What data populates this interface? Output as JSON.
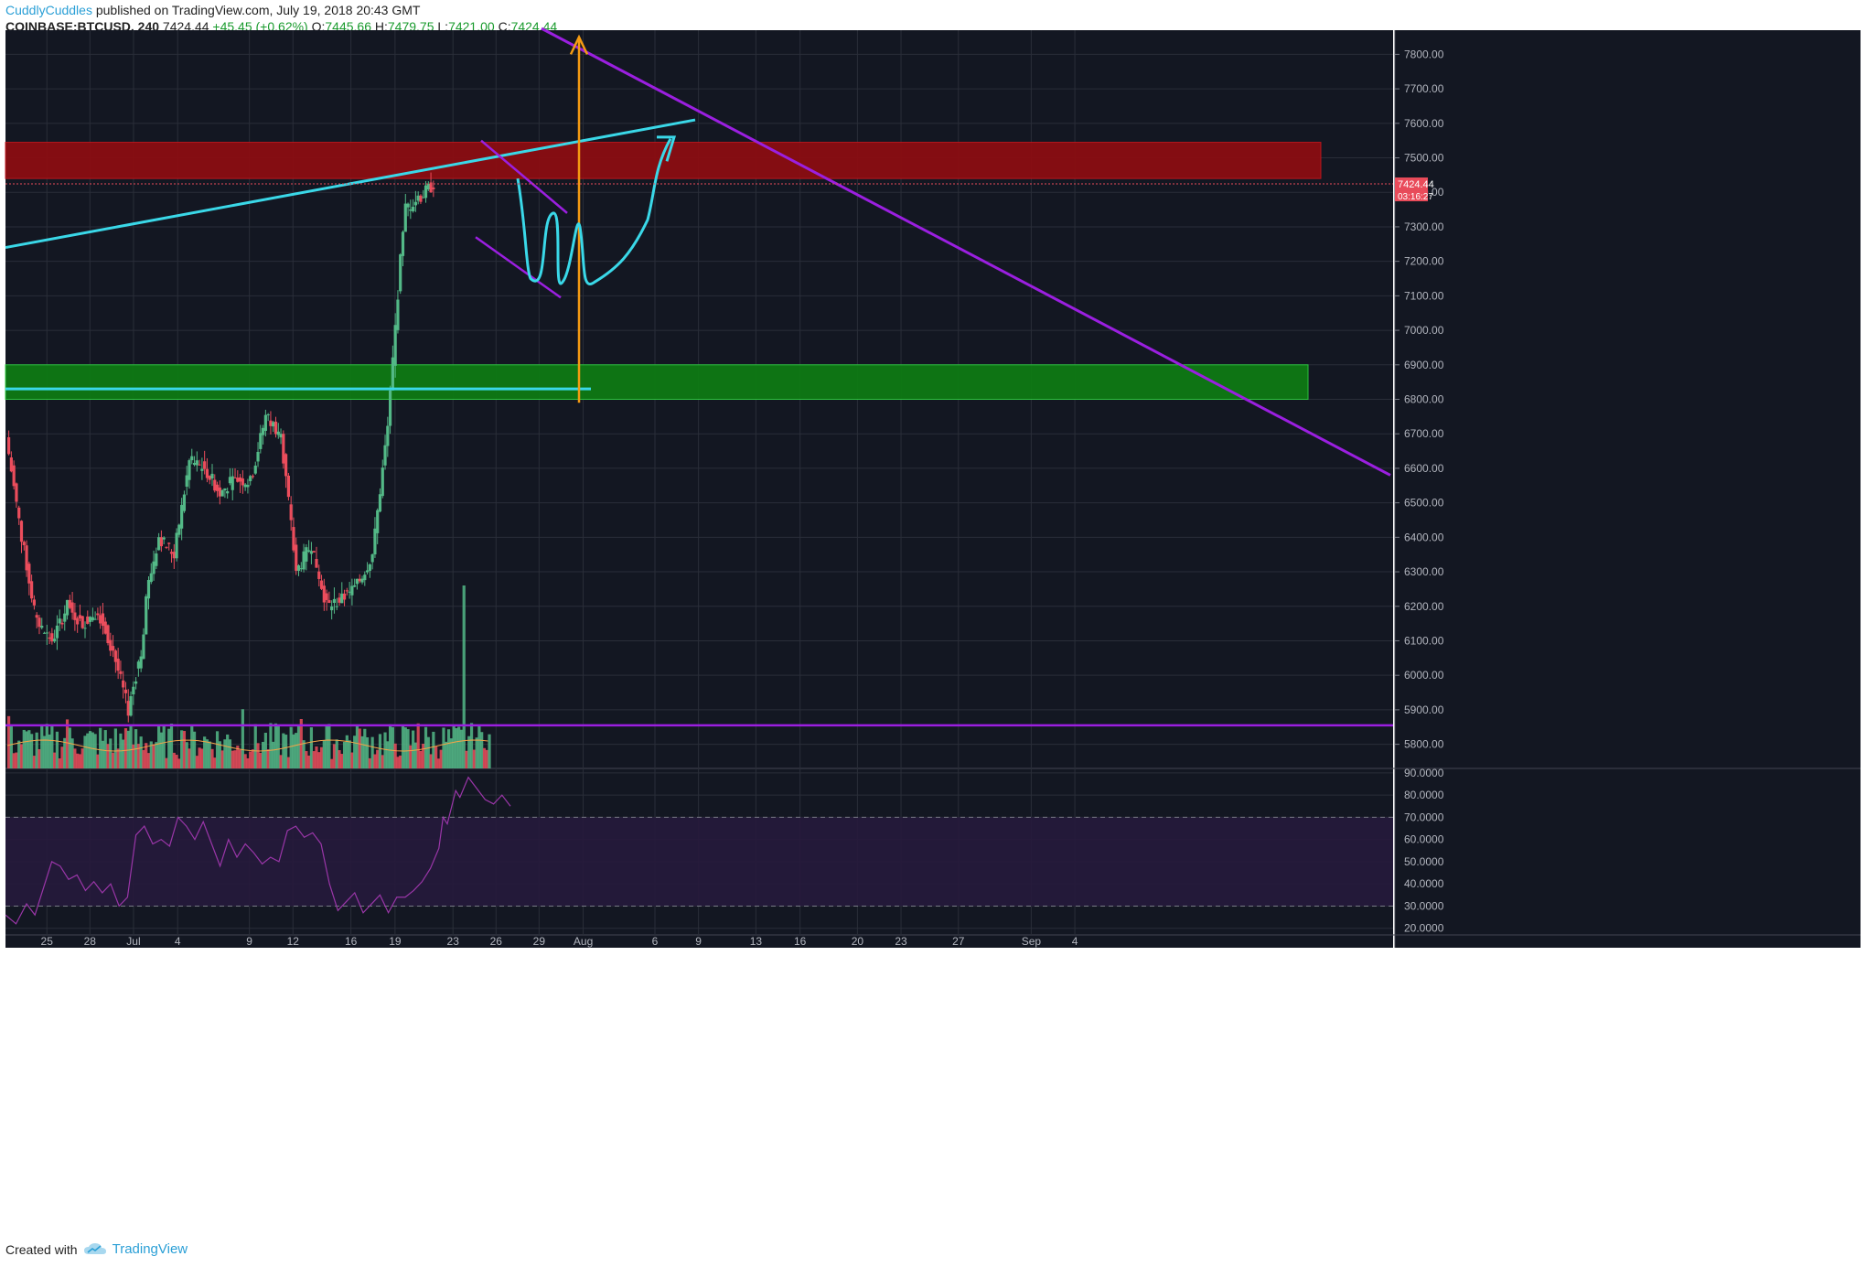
{
  "header": {
    "author": "CuddlyCuddles",
    "published": "published on TradingView.com, July 19, 2018 20:43 GMT",
    "symbol": "COINBASE:BTCUSD, 240",
    "last": "7424.44",
    "change": "+45.45 (+0.62%)",
    "o_label": "O:",
    "o_value": "7445.66",
    "h_label": "H:",
    "h_value": "7479.75",
    "l_label": "L:",
    "l_value": "7421.00",
    "c_label": "C:",
    "c_value": "7424.44"
  },
  "footer": {
    "created_with": "Created with",
    "brand": "TradingView",
    "logo_icon": "tradingview-cloud-icon"
  },
  "colors": {
    "background": "#131722",
    "grid": "#2a2e39",
    "up": "#53b987",
    "down": "#eb4d5c",
    "resistance_zone": "#8b0d12",
    "support_zone": "#0e7a14",
    "trendline": "#9b1fe0",
    "cyan": "#3ad8e8",
    "orange": "#f59b12",
    "rsi": "#9a36a8",
    "rsi_band": "#261a3c",
    "ma": "#f6a447",
    "price_tag": "#e94b5a"
  },
  "chart_data": [
    {
      "type": "candlestick",
      "title": "COINBASE:BTCUSD, 240",
      "y_axis_side": "right",
      "ylim": [
        5730,
        7870
      ],
      "y_ticks": [
        "7800.00",
        "7700.00",
        "7600.00",
        "7500.00",
        "7400.00",
        "7300.00",
        "7200.00",
        "7100.00",
        "7000.00",
        "6900.00",
        "6800.00",
        "6700.00",
        "6600.00",
        "6500.00",
        "6400.00",
        "6300.00",
        "6200.00",
        "6100.00",
        "6000.00",
        "5900.00",
        "5800.00"
      ],
      "x_ticks": [
        "25",
        "28",
        "Jul",
        "4",
        "9",
        "12",
        "16",
        "19",
        "23",
        "26",
        "29",
        "Aug",
        "6",
        "9",
        "13",
        "16",
        "20",
        "23",
        "27",
        "Sep",
        "4"
      ],
      "x_range": [
        "2018-06-21",
        "2018-09-06"
      ],
      "last_price_label": "7424.44",
      "countdown_label": "03:16:27",
      "candles_4h": [
        [
          "2018-06-22",
          6690,
          6750,
          6350,
          6400
        ],
        [
          "2018-06-23",
          6400,
          6420,
          6050,
          6150
        ],
        [
          "2018-06-24",
          6150,
          6300,
          5800,
          6100
        ],
        [
          "2018-06-25",
          6100,
          6300,
          6050,
          6200
        ],
        [
          "2018-06-26",
          6200,
          6290,
          6080,
          6150
        ],
        [
          "2018-06-27",
          6150,
          6220,
          6070,
          6190
        ],
        [
          "2018-06-28",
          6190,
          6210,
          6050,
          6070
        ],
        [
          "2018-06-29",
          6070,
          6080,
          5850,
          5900
        ],
        [
          "2018-06-30",
          5900,
          6150,
          5880,
          6100
        ],
        [
          "2018-07-01",
          6200,
          6450,
          6150,
          6400
        ],
        [
          "2018-07-02",
          6400,
          6420,
          6300,
          6350
        ],
        [
          "2018-07-03",
          6350,
          6650,
          6330,
          6620
        ],
        [
          "2018-07-04",
          6620,
          6700,
          6550,
          6600
        ],
        [
          "2018-07-05",
          6600,
          6680,
          6450,
          6530
        ],
        [
          "2018-07-06",
          6530,
          6600,
          6480,
          6570
        ],
        [
          "2018-07-07",
          6570,
          6620,
          6500,
          6560
        ],
        [
          "2018-07-08",
          6560,
          6780,
          6550,
          6750
        ],
        [
          "2018-07-09",
          6750,
          6780,
          6650,
          6700
        ],
        [
          "2018-07-10",
          6700,
          6710,
          6250,
          6300
        ],
        [
          "2018-07-11",
          6300,
          6430,
          6280,
          6380
        ],
        [
          "2018-07-12",
          6380,
          6390,
          6100,
          6200
        ],
        [
          "2018-07-13",
          6200,
          6270,
          6150,
          6220
        ],
        [
          "2018-07-14",
          6220,
          6280,
          6200,
          6260
        ],
        [
          "2018-07-15",
          6260,
          6400,
          6240,
          6350
        ],
        [
          "2018-07-16",
          6350,
          6750,
          6340,
          6720
        ],
        [
          "2018-07-17",
          6720,
          7450,
          6700,
          7300
        ],
        [
          "2018-07-18",
          7350,
          7590,
          7300,
          7380
        ],
        [
          "2018-07-19",
          7380,
          7480,
          7300,
          7424.44
        ]
      ],
      "volume_bars": 190
    },
    {
      "type": "line",
      "title": "",
      "y_axis_side": "right",
      "ylim": [
        17,
        92
      ],
      "y_ticks": [
        "90.0000",
        "80.0000",
        "70.0000",
        "60.0000",
        "50.0000",
        "40.0000",
        "30.0000",
        "20.0000"
      ],
      "band": [
        30,
        70
      ],
      "series": [
        {
          "values": [
            [
              0,
              26
            ],
            [
              5,
              22
            ],
            [
              10,
              31
            ],
            [
              14,
              26
            ],
            [
              18,
              38
            ],
            [
              22,
              50
            ],
            [
              26,
              48
            ],
            [
              30,
              42
            ],
            [
              34,
              44
            ],
            [
              38,
              37
            ],
            [
              42,
              41
            ],
            [
              46,
              36
            ],
            [
              50,
              40
            ],
            [
              54,
              30
            ],
            [
              58,
              34
            ],
            [
              62,
              62
            ],
            [
              66,
              66
            ],
            [
              70,
              58
            ],
            [
              74,
              60
            ],
            [
              78,
              57
            ],
            [
              82,
              70
            ],
            [
              86,
              66
            ],
            [
              90,
              60
            ],
            [
              94,
              68
            ],
            [
              98,
              58
            ],
            [
              102,
              48
            ],
            [
              106,
              60
            ],
            [
              110,
              52
            ],
            [
              114,
              58
            ],
            [
              118,
              54
            ],
            [
              122,
              49
            ],
            [
              126,
              52
            ],
            [
              130,
              50
            ],
            [
              134,
              64
            ],
            [
              138,
              66
            ],
            [
              142,
              61
            ],
            [
              146,
              63
            ],
            [
              150,
              58
            ],
            [
              154,
              40
            ],
            [
              158,
              28
            ],
            [
              162,
              32
            ],
            [
              166,
              36
            ],
            [
              170,
              27
            ],
            [
              174,
              31
            ],
            [
              178,
              35
            ],
            [
              182,
              27
            ],
            [
              186,
              34
            ],
            [
              190,
              34
            ],
            [
              194,
              37
            ],
            [
              198,
              41
            ],
            [
              202,
              47
            ],
            [
              206,
              56
            ],
            [
              208,
              70
            ],
            [
              210,
              67
            ],
            [
              214,
              82
            ],
            [
              216,
              79
            ],
            [
              220,
              88
            ],
            [
              224,
              83
            ],
            [
              228,
              78
            ],
            [
              232,
              76
            ],
            [
              236,
              80
            ],
            [
              240,
              75
            ]
          ]
        }
      ]
    }
  ]
}
